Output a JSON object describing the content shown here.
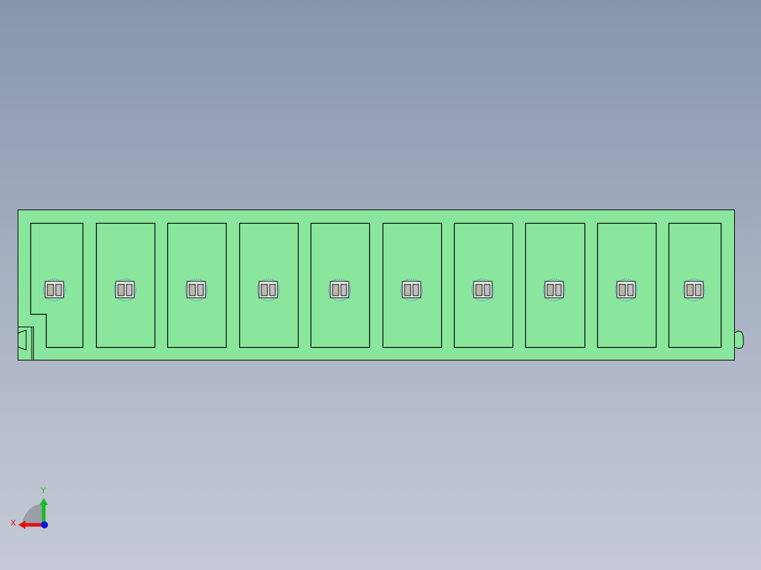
{
  "viewport": {
    "model_color": "#8ae69c",
    "edge_color": "#000000",
    "pocket_count": 10,
    "triad": {
      "x_label": "X",
      "y_label": "Y",
      "x_color": "#e01010",
      "y_color": "#10c020",
      "z_color": "#1010e0"
    }
  }
}
